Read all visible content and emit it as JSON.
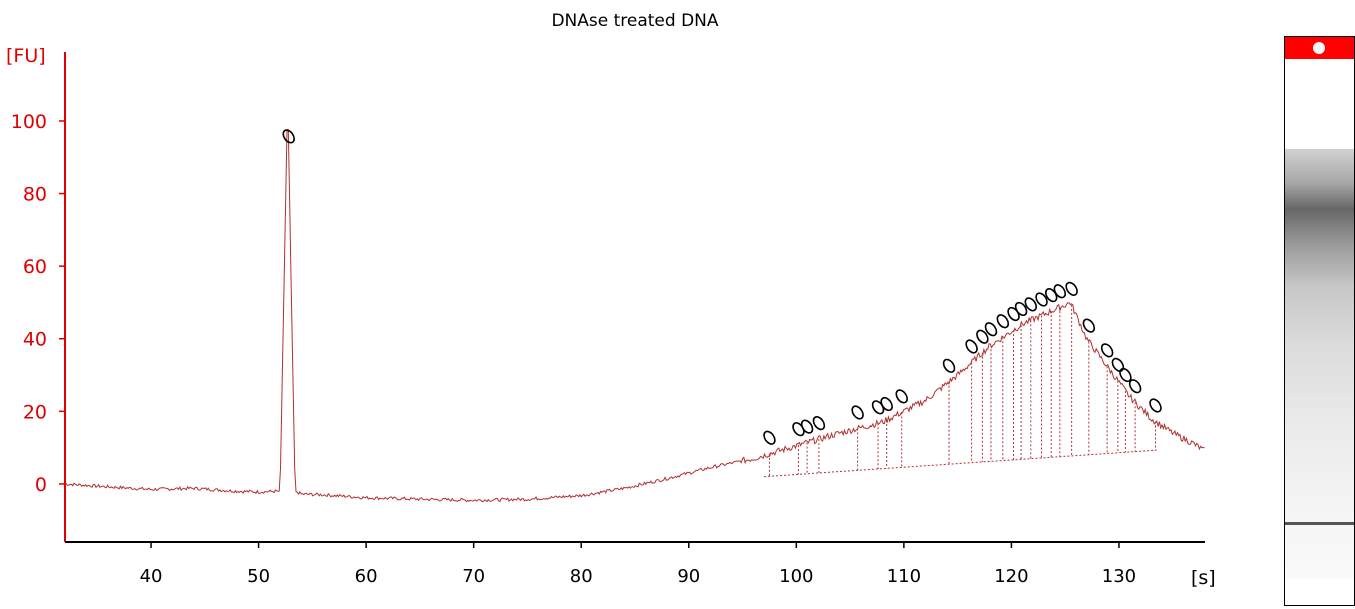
{
  "chart_data": {
    "type": "line",
    "title": "DNAse treated DNA",
    "ylabel": "[FU]",
    "xlabel": "[s]",
    "xlim": [
      32,
      138
    ],
    "ylim": [
      -16,
      119
    ],
    "yticks": [
      0,
      20,
      40,
      60,
      80,
      100
    ],
    "xticks": [
      40,
      50,
      60,
      70,
      80,
      90,
      100,
      110,
      120,
      130
    ],
    "colors": {
      "trace": "#b03030",
      "axis": "#e00000",
      "peak_marker": "#000000"
    },
    "series": [
      {
        "x": [
          32,
          36,
          40,
          44,
          48,
          50,
          52.0,
          52.4,
          52.7,
          53.0,
          53.4,
          54,
          56,
          60,
          65,
          70,
          75,
          80,
          84,
          88,
          92,
          96,
          100,
          104,
          108,
          112,
          115,
          118,
          121,
          124,
          125.5,
          127,
          129,
          131,
          133,
          135,
          137,
          138
        ],
        "y": [
          0,
          -0.8,
          -1.5,
          -1.2,
          -2,
          -2.2,
          -2,
          60,
          107,
          60,
          -2,
          -2.8,
          -3,
          -3.8,
          -4.2,
          -4.5,
          -4.2,
          -3.2,
          -1.2,
          1.5,
          4.5,
          7,
          10.5,
          14,
          17,
          23,
          30,
          38,
          44,
          48,
          50,
          40,
          32,
          24,
          18,
          14,
          11,
          9
        ]
      }
    ],
    "peaks_x": [
      52.8,
      97.5,
      100.2,
      101,
      102.1,
      105.7,
      107.6,
      108.4,
      109.8,
      114.2,
      116.3,
      117.3,
      118.1,
      119.2,
      120.2,
      120.9,
      121.8,
      122.8,
      123.7,
      124.5,
      125.6,
      127.2,
      128.9,
      129.9,
      130.6,
      131.5,
      133.4
    ]
  },
  "gel": {
    "band_color": "#555555",
    "marker_color": "#ff0000"
  }
}
